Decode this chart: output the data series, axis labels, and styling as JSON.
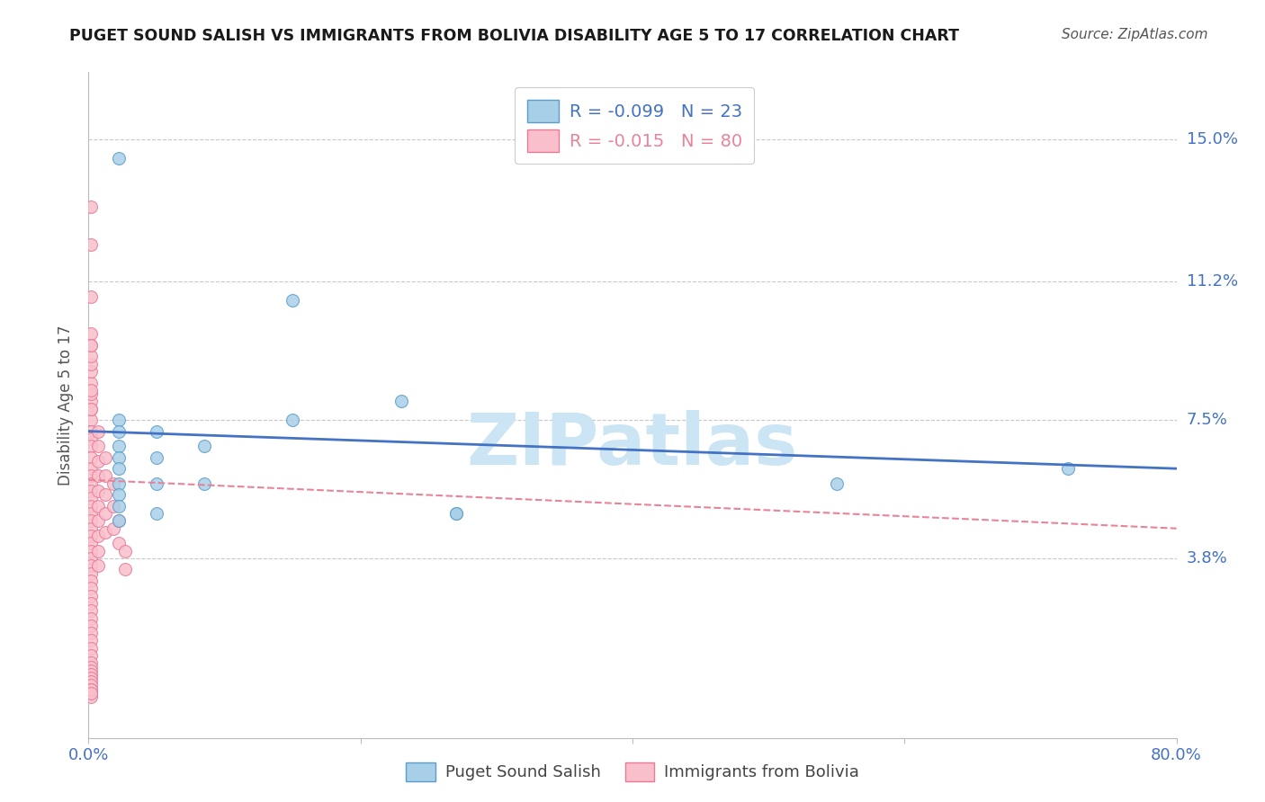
{
  "title": "PUGET SOUND SALISH VS IMMIGRANTS FROM BOLIVIA DISABILITY AGE 5 TO 17 CORRELATION CHART",
  "source": "Source: ZipAtlas.com",
  "ylabel": "Disability Age 5 to 17",
  "ytick_labels": [
    "3.8%",
    "7.5%",
    "11.2%",
    "15.0%"
  ],
  "ytick_values": [
    0.038,
    0.075,
    0.112,
    0.15
  ],
  "xlim": [
    0.0,
    0.8
  ],
  "ylim": [
    -0.01,
    0.168
  ],
  "legend1_label": "Puget Sound Salish",
  "legend2_label": "Immigrants from Bolivia",
  "R1": -0.099,
  "N1": 23,
  "R2": -0.015,
  "N2": 80,
  "blue_fill": "#a8cfe8",
  "blue_edge": "#5b9ec9",
  "pink_fill": "#f9c0cc",
  "pink_edge": "#e87a96",
  "blue_line": "#4472c4",
  "pink_line": "#e8849a",
  "grid_color": "#c8c8c8",
  "axis_color": "#4472c4",
  "watermark_color": "#cce5f5",
  "blue_x": [
    0.022,
    0.022,
    0.022,
    0.022,
    0.022,
    0.022,
    0.022,
    0.022,
    0.022,
    0.05,
    0.05,
    0.05,
    0.05,
    0.085,
    0.085,
    0.15,
    0.15,
    0.23,
    0.27,
    0.27,
    0.55,
    0.72,
    0.022
  ],
  "blue_y": [
    0.075,
    0.072,
    0.068,
    0.065,
    0.062,
    0.058,
    0.055,
    0.052,
    0.048,
    0.072,
    0.065,
    0.058,
    0.05,
    0.068,
    0.058,
    0.107,
    0.075,
    0.08,
    0.05,
    0.05,
    0.058,
    0.062,
    0.145
  ],
  "pink_x": [
    0.002,
    0.002,
    0.002,
    0.002,
    0.002,
    0.002,
    0.002,
    0.002,
    0.002,
    0.002,
    0.002,
    0.002,
    0.002,
    0.002,
    0.002,
    0.002,
    0.002,
    0.002,
    0.002,
    0.002,
    0.002,
    0.002,
    0.002,
    0.002,
    0.002,
    0.002,
    0.002,
    0.002,
    0.002,
    0.002,
    0.002,
    0.002,
    0.002,
    0.002,
    0.002,
    0.002,
    0.002,
    0.002,
    0.002,
    0.002,
    0.002,
    0.002,
    0.002,
    0.002,
    0.002,
    0.002,
    0.002,
    0.002,
    0.002,
    0.002,
    0.007,
    0.007,
    0.007,
    0.007,
    0.007,
    0.007,
    0.007,
    0.007,
    0.007,
    0.007,
    0.012,
    0.012,
    0.012,
    0.012,
    0.012,
    0.018,
    0.018,
    0.018,
    0.022,
    0.022,
    0.027,
    0.027,
    0.002,
    0.002,
    0.002,
    0.002,
    0.002,
    0.002,
    0.002,
    0.002
  ],
  "pink_y": [
    0.075,
    0.072,
    0.07,
    0.068,
    0.065,
    0.062,
    0.06,
    0.058,
    0.056,
    0.054,
    0.052,
    0.05,
    0.048,
    0.046,
    0.044,
    0.042,
    0.04,
    0.038,
    0.036,
    0.034,
    0.032,
    0.03,
    0.028,
    0.026,
    0.024,
    0.022,
    0.02,
    0.018,
    0.016,
    0.014,
    0.012,
    0.01,
    0.009,
    0.008,
    0.007,
    0.006,
    0.005,
    0.004,
    0.003,
    0.002,
    0.078,
    0.08,
    0.082,
    0.085,
    0.088,
    0.09,
    0.092,
    0.095,
    0.098,
    0.001,
    0.072,
    0.068,
    0.064,
    0.06,
    0.056,
    0.052,
    0.048,
    0.044,
    0.04,
    0.036,
    0.065,
    0.06,
    0.055,
    0.05,
    0.045,
    0.058,
    0.052,
    0.046,
    0.048,
    0.042,
    0.04,
    0.035,
    0.132,
    0.122,
    0.108,
    0.095,
    0.083,
    0.078,
    0.003,
    0.002
  ],
  "blue_trend_x": [
    0.0,
    0.8
  ],
  "blue_trend_y": [
    0.072,
    0.062
  ],
  "pink_trend_x": [
    0.0,
    0.8
  ],
  "pink_trend_y": [
    0.059,
    0.046
  ]
}
